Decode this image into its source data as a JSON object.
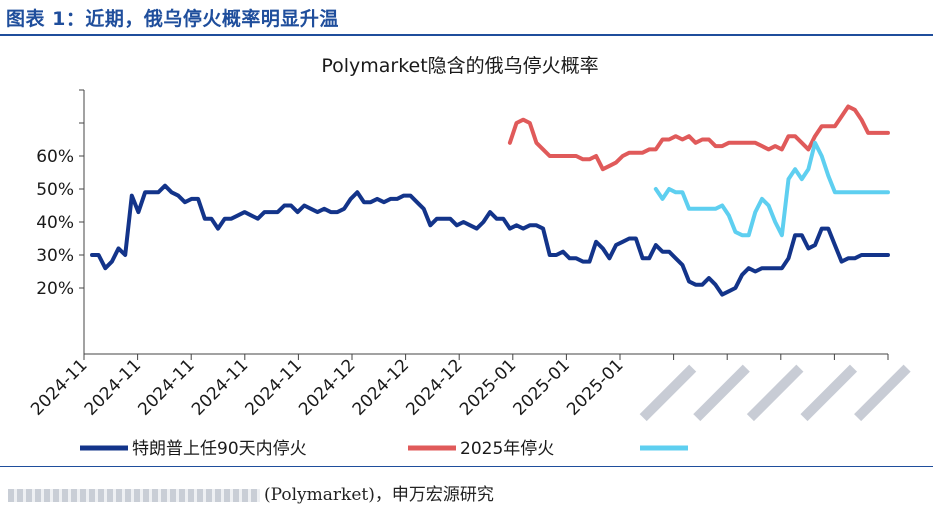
{
  "header": {
    "title": "图表 1：近期，俄乌停火概率明显升温"
  },
  "source": {
    "text": "(Polymarket)，申万宏源研究"
  },
  "colors": {
    "accent": "#1f4e9c",
    "series1": "#13348a",
    "series2": "#e05a5a",
    "series3": "#5ecff0"
  },
  "chart_data": {
    "type": "line",
    "title": "Polymarket隐含的俄乌停火概率",
    "xlabel": "",
    "ylabel": "",
    "ylim": [
      0,
      80
    ],
    "y_ticks": [
      "20%",
      "30%",
      "40%",
      "50%",
      "60%"
    ],
    "x_ticks": [
      "2024-11",
      "2024-11",
      "2024-11",
      "2024-11",
      "2024-11",
      "2024-12",
      "2024-12",
      "2024-12",
      "2025-01",
      "2025-01",
      "2025-01"
    ],
    "grid": false,
    "legend": "bottom",
    "x": [
      0,
      1,
      2,
      3,
      4,
      5,
      6,
      7,
      8,
      9,
      10,
      11,
      12,
      13,
      14,
      15,
      16,
      17,
      18,
      19,
      20,
      21,
      22,
      23,
      24,
      25,
      26,
      27,
      28,
      29,
      30,
      31,
      32,
      33,
      34,
      35,
      36,
      37,
      38,
      39,
      40,
      41,
      42,
      43,
      44,
      45,
      46,
      47,
      48,
      49,
      50,
      51,
      52,
      53,
      54,
      55,
      56,
      57,
      58,
      59,
      60,
      61,
      62,
      63,
      64,
      65,
      66,
      67,
      68,
      69,
      70,
      71,
      72,
      73,
      74,
      75,
      76,
      77,
      78,
      79,
      80,
      81,
      82,
      83,
      84,
      85,
      86,
      87,
      88,
      89,
      90,
      91,
      92,
      93,
      94,
      95,
      96,
      97,
      98,
      99,
      100,
      101,
      102,
      103,
      104,
      105,
      106,
      107,
      108,
      109,
      110,
      111,
      112,
      113,
      114,
      115,
      116,
      117,
      118,
      119,
      120
    ],
    "series": [
      {
        "name": "特朗普上任90天内停火",
        "values": [
          30,
          30,
          26,
          28,
          32,
          30,
          48,
          43,
          49,
          49,
          49,
          51,
          49,
          48,
          46,
          47,
          47,
          41,
          41,
          38,
          41,
          41,
          42,
          43,
          42,
          41,
          43,
          43,
          43,
          45,
          45,
          43,
          45,
          44,
          43,
          44,
          43,
          43,
          44,
          47,
          49,
          46,
          46,
          47,
          46,
          47,
          47,
          48,
          48,
          46,
          44,
          39,
          41,
          41,
          41,
          39,
          40,
          39,
          38,
          40,
          43,
          41,
          41,
          38,
          39,
          38,
          39,
          39,
          38,
          30,
          30,
          31,
          29,
          29,
          28,
          28,
          34,
          32,
          29,
          33,
          34,
          35,
          35,
          29,
          29,
          33,
          31,
          31,
          29,
          27,
          22,
          21,
          21,
          23,
          21,
          18,
          19,
          20,
          24,
          26,
          25,
          26,
          26,
          26,
          26,
          29,
          36,
          36,
          32,
          33,
          38,
          38,
          33,
          28,
          29,
          29,
          30,
          30,
          30,
          30,
          30
        ]
      },
      {
        "name": "2025年停火",
        "values": [
          null,
          null,
          null,
          null,
          null,
          null,
          null,
          null,
          null,
          null,
          null,
          null,
          null,
          null,
          null,
          null,
          null,
          null,
          null,
          null,
          null,
          null,
          null,
          null,
          null,
          null,
          null,
          null,
          null,
          null,
          null,
          null,
          null,
          null,
          null,
          null,
          null,
          null,
          null,
          null,
          null,
          null,
          null,
          null,
          null,
          null,
          null,
          null,
          null,
          null,
          null,
          null,
          null,
          null,
          null,
          null,
          null,
          null,
          null,
          null,
          null,
          null,
          null,
          64,
          70,
          71,
          70,
          64,
          62,
          60,
          60,
          60,
          60,
          60,
          59,
          59,
          60,
          56,
          57,
          58,
          60,
          61,
          61,
          61,
          62,
          62,
          65,
          65,
          66,
          65,
          66,
          64,
          65,
          65,
          63,
          63,
          64,
          64,
          64,
          64,
          64,
          63,
          62,
          63,
          62,
          66,
          66,
          64,
          62,
          66,
          69,
          69,
          69,
          72,
          75,
          74,
          71,
          67,
          67,
          67,
          67
        ]
      },
      {
        "name": "",
        "values": [
          null,
          null,
          null,
          null,
          null,
          null,
          null,
          null,
          null,
          null,
          null,
          null,
          null,
          null,
          null,
          null,
          null,
          null,
          null,
          null,
          null,
          null,
          null,
          null,
          null,
          null,
          null,
          null,
          null,
          null,
          null,
          null,
          null,
          null,
          null,
          null,
          null,
          null,
          null,
          null,
          null,
          null,
          null,
          null,
          null,
          null,
          null,
          null,
          null,
          null,
          null,
          null,
          null,
          null,
          null,
          null,
          null,
          null,
          null,
          null,
          null,
          null,
          null,
          null,
          null,
          null,
          null,
          null,
          null,
          null,
          null,
          null,
          null,
          null,
          null,
          null,
          null,
          null,
          null,
          null,
          null,
          null,
          null,
          null,
          null,
          50,
          47,
          50,
          49,
          49,
          44,
          44,
          44,
          44,
          44,
          45,
          42,
          37,
          36,
          36,
          43,
          47,
          45,
          40,
          36,
          53,
          56,
          53,
          56,
          64,
          60,
          54,
          49,
          49,
          49,
          49,
          49,
          49,
          49,
          49,
          49
        ]
      }
    ]
  }
}
